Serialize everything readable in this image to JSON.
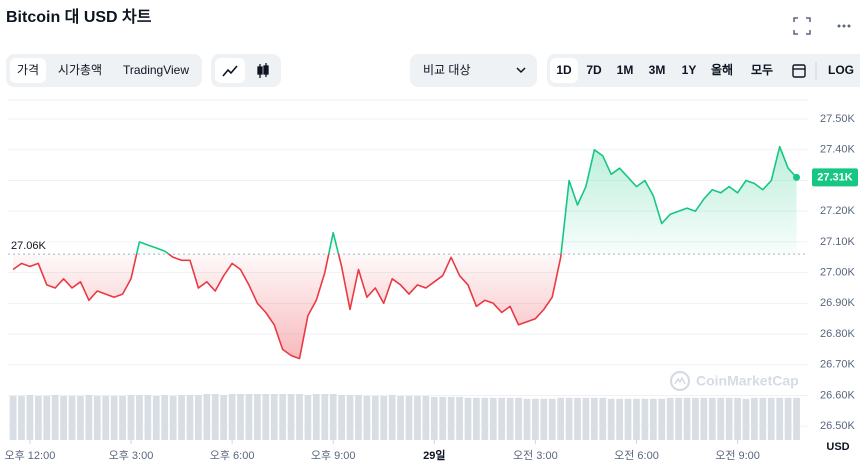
{
  "chart_data": {
    "type": "line",
    "title": "Bitcoin 대 USD 차트",
    "ui": {
      "tabs": [
        "가격",
        "시가총액",
        "TradingView"
      ],
      "compare": "비교 대상",
      "ranges": [
        "1D",
        "7D",
        "1M",
        "3M",
        "1Y",
        "올해",
        "모두"
      ],
      "log": "LOG"
    },
    "y_label": "USD",
    "watermark": "CoinMarketCap",
    "baseline": 27.06,
    "baseline_label": "27.06K",
    "last_value_label": "27.31K",
    "colors": {
      "up": "#16c784",
      "down": "#ea3943",
      "volume": "#d9dee4"
    },
    "x": [
      11.5,
      11.75,
      12,
      12.25,
      12.5,
      12.75,
      13,
      13.25,
      13.5,
      13.75,
      14,
      14.25,
      14.5,
      14.75,
      15,
      15.25,
      15.5,
      15.75,
      16,
      16.25,
      16.5,
      16.75,
      17,
      17.25,
      17.5,
      17.75,
      18,
      18.25,
      18.5,
      18.75,
      19,
      19.25,
      19.5,
      19.75,
      20,
      20.25,
      20.5,
      20.75,
      21,
      21.25,
      21.5,
      21.75,
      22,
      22.25,
      22.5,
      22.75,
      23,
      23.25,
      23.5,
      23.75,
      24,
      24.25,
      24.5,
      24.75,
      25,
      25.25,
      25.5,
      25.75,
      26,
      26.25,
      26.5,
      26.75,
      27,
      27.25,
      27.5,
      27.75,
      28,
      28.25,
      28.5,
      28.75,
      29,
      29.25,
      29.5,
      29.75,
      30,
      30.25,
      30.5,
      30.75,
      31,
      31.25,
      31.5,
      31.75,
      32,
      32.25,
      32.5,
      32.75,
      33,
      33.25,
      33.5,
      33.75,
      34,
      34.25,
      34.5,
      34.75
    ],
    "series": [
      {
        "name": "Bitcoin",
        "values": [
          27.01,
          27.03,
          27.02,
          27.03,
          26.96,
          26.95,
          26.98,
          26.95,
          26.97,
          26.91,
          26.94,
          26.93,
          26.92,
          26.93,
          26.98,
          27.1,
          27.09,
          27.08,
          27.07,
          27.05,
          27.04,
          27.04,
          26.95,
          26.97,
          26.94,
          26.99,
          27.03,
          27.01,
          26.96,
          26.9,
          26.87,
          26.83,
          26.75,
          26.73,
          26.72,
          26.86,
          26.91,
          27.0,
          27.13,
          27.02,
          26.88,
          27.01,
          26.92,
          26.95,
          26.9,
          26.98,
          26.96,
          26.93,
          26.96,
          26.95,
          26.97,
          26.99,
          27.05,
          26.99,
          26.96,
          26.89,
          26.91,
          26.9,
          26.87,
          26.89,
          26.83,
          26.84,
          26.85,
          26.88,
          26.92,
          27.05,
          27.3,
          27.22,
          27.28,
          27.4,
          27.38,
          27.32,
          27.34,
          27.31,
          27.28,
          27.3,
          27.25,
          27.16,
          27.19,
          27.2,
          27.21,
          27.2,
          27.24,
          27.27,
          27.26,
          27.28,
          27.26,
          27.3,
          27.29,
          27.27,
          27.3,
          27.41,
          27.34,
          27.31
        ]
      }
    ],
    "volume": [
      46,
      46,
      47,
      46,
      46,
      47,
      46,
      46,
      46,
      47,
      46,
      46,
      46,
      46,
      47,
      47,
      47,
      46,
      47,
      46,
      47,
      47,
      47,
      48,
      48,
      47,
      48,
      48,
      48,
      48,
      48,
      48,
      48,
      48,
      48,
      47,
      48,
      48,
      48,
      47,
      47,
      47,
      46,
      46,
      46,
      47,
      46,
      46,
      46,
      46,
      45,
      45,
      45,
      45,
      44,
      44,
      44,
      44,
      44,
      44,
      44,
      43,
      43,
      43,
      43,
      44,
      44,
      44,
      44,
      44,
      44,
      43,
      43,
      43,
      43,
      43,
      43,
      43,
      44,
      44,
      44,
      44,
      44,
      44,
      44,
      44,
      44,
      43,
      44,
      44,
      44,
      44,
      44,
      44
    ],
    "xlim": [
      11.35,
      35.09
    ],
    "xticks": [
      {
        "value": 12,
        "label": "오후 12:00"
      },
      {
        "value": 15,
        "label": "오후 3:00"
      },
      {
        "value": 18,
        "label": "오후 6:00"
      },
      {
        "value": 21,
        "label": "오후 9:00"
      },
      {
        "value": 24,
        "label": "29일"
      },
      {
        "value": 27,
        "label": "오전 3:00"
      },
      {
        "value": 30,
        "label": "오전 6:00"
      },
      {
        "value": 33,
        "label": "오전 9:00"
      }
    ],
    "ylim": [
      26.455,
      27.562
    ],
    "yticks": [
      {
        "value": 26.5,
        "label": "26.50K"
      },
      {
        "value": 26.6,
        "label": "26.60K"
      },
      {
        "value": 26.7,
        "label": "26.70K"
      },
      {
        "value": 26.8,
        "label": "26.80K"
      },
      {
        "value": 26.9,
        "label": "26.90K"
      },
      {
        "value": 27.0,
        "label": "27.00K"
      },
      {
        "value": 27.1,
        "label": "27.10K"
      },
      {
        "value": 27.2,
        "label": "27.20K"
      },
      {
        "value": 27.3,
        "label": "27.30K"
      },
      {
        "value": 27.4,
        "label": "27.40K"
      },
      {
        "value": 27.5,
        "label": "27.50K"
      }
    ],
    "grid": true
  }
}
